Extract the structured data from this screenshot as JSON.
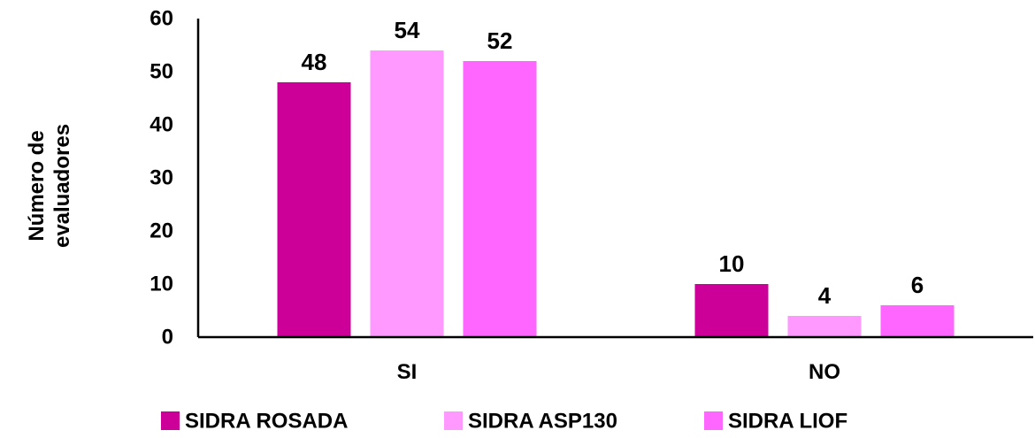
{
  "chart_data": {
    "type": "bar",
    "categories": [
      "SI",
      "NO"
    ],
    "series": [
      {
        "name": "SIDRA ROSADA",
        "values": [
          48,
          10
        ],
        "color": "#cc0099"
      },
      {
        "name": "SIDRA ASP130",
        "values": [
          54,
          4
        ],
        "color": "#ff99ff"
      },
      {
        "name": "SIDRA LIOF",
        "values": [
          52,
          6
        ],
        "color": "#ff66ff"
      }
    ],
    "title": "",
    "xlabel": "",
    "ylabel_lines": [
      "Número de",
      "evaluadores"
    ],
    "ylim": [
      0,
      60
    ],
    "yticks": [
      "0",
      "10",
      "20",
      "30",
      "40",
      "50",
      "60"
    ],
    "grid": false,
    "legend_position": "bottom",
    "data_labels": true
  }
}
